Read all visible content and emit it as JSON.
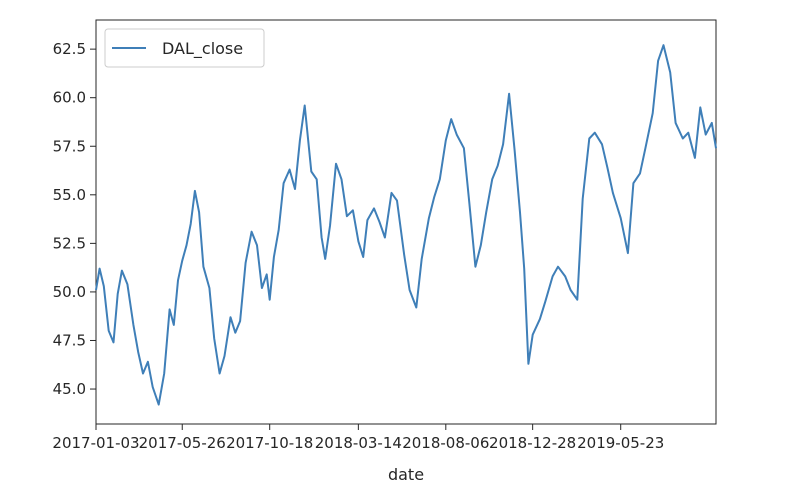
{
  "chart_data": {
    "type": "line",
    "title": "",
    "xlabel": "date",
    "ylabel": "",
    "ylim": [
      43.2,
      64.0
    ],
    "xlim": [
      "2017-01-03",
      "2019-10-28"
    ],
    "grid": false,
    "legend": {
      "placement": "top-left",
      "entries": [
        "DAL_close"
      ]
    },
    "y_ticks": [
      "45.0",
      "47.5",
      "50.0",
      "52.5",
      "55.0",
      "57.5",
      "60.0",
      "62.5"
    ],
    "x_ticks": [
      "2017-01-03",
      "2017-05-26",
      "2017-10-18",
      "2018-03-14",
      "2018-08-06",
      "2018-12-28",
      "2019-05-23"
    ],
    "series": [
      {
        "name": "DAL_close",
        "color": "#3f7fb8",
        "x": [
          "2017-01-03",
          "2017-01-09",
          "2017-01-16",
          "2017-01-24",
          "2017-02-01",
          "2017-02-08",
          "2017-02-15",
          "2017-02-24",
          "2017-03-06",
          "2017-03-14",
          "2017-03-22",
          "2017-03-30",
          "2017-04-07",
          "2017-04-17",
          "2017-04-26",
          "2017-05-05",
          "2017-05-12",
          "2017-05-19",
          "2017-05-26",
          "2017-06-02",
          "2017-06-09",
          "2017-06-16",
          "2017-06-23",
          "2017-06-30",
          "2017-07-10",
          "2017-07-18",
          "2017-07-27",
          "2017-08-04",
          "2017-08-14",
          "2017-08-22",
          "2017-08-30",
          "2017-09-08",
          "2017-09-18",
          "2017-09-27",
          "2017-10-05",
          "2017-10-13",
          "2017-10-18",
          "2017-10-25",
          "2017-11-02",
          "2017-11-10",
          "2017-11-20",
          "2017-11-29",
          "2017-12-07",
          "2017-12-15",
          "2017-12-26",
          "2018-01-04",
          "2018-01-12",
          "2018-01-18",
          "2018-01-26",
          "2018-02-05",
          "2018-02-14",
          "2018-02-23",
          "2018-03-05",
          "2018-03-14",
          "2018-03-22",
          "2018-03-29",
          "2018-04-09",
          "2018-04-18",
          "2018-04-27",
          "2018-05-08",
          "2018-05-17",
          "2018-05-29",
          "2018-06-07",
          "2018-06-18",
          "2018-06-27",
          "2018-07-09",
          "2018-07-18",
          "2018-07-27",
          "2018-08-06",
          "2018-08-15",
          "2018-08-24",
          "2018-09-05",
          "2018-09-14",
          "2018-09-24",
          "2018-10-03",
          "2018-10-12",
          "2018-10-22",
          "2018-10-31",
          "2018-11-09",
          "2018-11-19",
          "2018-11-28",
          "2018-12-07",
          "2018-12-14",
          "2018-12-21",
          "2018-12-28",
          "2019-01-09",
          "2019-01-18",
          "2019-01-30",
          "2019-02-08",
          "2019-02-20",
          "2019-03-01",
          "2019-03-12",
          "2019-03-21",
          "2019-04-01",
          "2019-04-10",
          "2019-04-22",
          "2019-05-01",
          "2019-05-10",
          "2019-05-23",
          "2019-06-04",
          "2019-06-13",
          "2019-06-24",
          "2019-07-03",
          "2019-07-15",
          "2019-07-24",
          "2019-08-02",
          "2019-08-13",
          "2019-08-22",
          "2019-09-03",
          "2019-09-12",
          "2019-09-23",
          "2019-10-02",
          "2019-10-11",
          "2019-10-21",
          "2019-10-28"
        ],
        "values": [
          50.1,
          51.2,
          50.3,
          48.0,
          47.4,
          49.9,
          51.1,
          50.4,
          48.3,
          46.9,
          45.8,
          46.4,
          45.1,
          44.2,
          45.8,
          49.1,
          48.3,
          50.6,
          51.6,
          52.4,
          53.5,
          55.2,
          54.1,
          51.3,
          50.2,
          47.6,
          45.8,
          46.7,
          48.7,
          47.9,
          48.5,
          51.5,
          53.1,
          52.4,
          50.2,
          50.9,
          49.6,
          51.8,
          53.2,
          55.6,
          56.3,
          55.3,
          57.8,
          59.6,
          56.2,
          55.8,
          52.8,
          51.7,
          53.4,
          56.6,
          55.8,
          53.9,
          54.2,
          52.6,
          51.8,
          53.7,
          54.3,
          53.6,
          52.8,
          55.1,
          54.7,
          51.9,
          50.1,
          49.2,
          51.7,
          53.8,
          54.9,
          55.8,
          57.8,
          58.9,
          58.1,
          57.4,
          54.6,
          51.3,
          52.4,
          54.1,
          55.8,
          56.5,
          57.6,
          60.2,
          57.3,
          54.1,
          51.2,
          46.3,
          47.8,
          48.6,
          49.5,
          50.8,
          51.3,
          50.8,
          50.1,
          49.6,
          54.8,
          57.9,
          58.2,
          57.6,
          56.4,
          55.1,
          53.8,
          52.0,
          55.6,
          56.1,
          57.4,
          59.2,
          61.9,
          62.7,
          61.3,
          58.7,
          57.9,
          58.2,
          56.9,
          59.5,
          58.1,
          58.7,
          57.4
        ]
      }
    ]
  }
}
